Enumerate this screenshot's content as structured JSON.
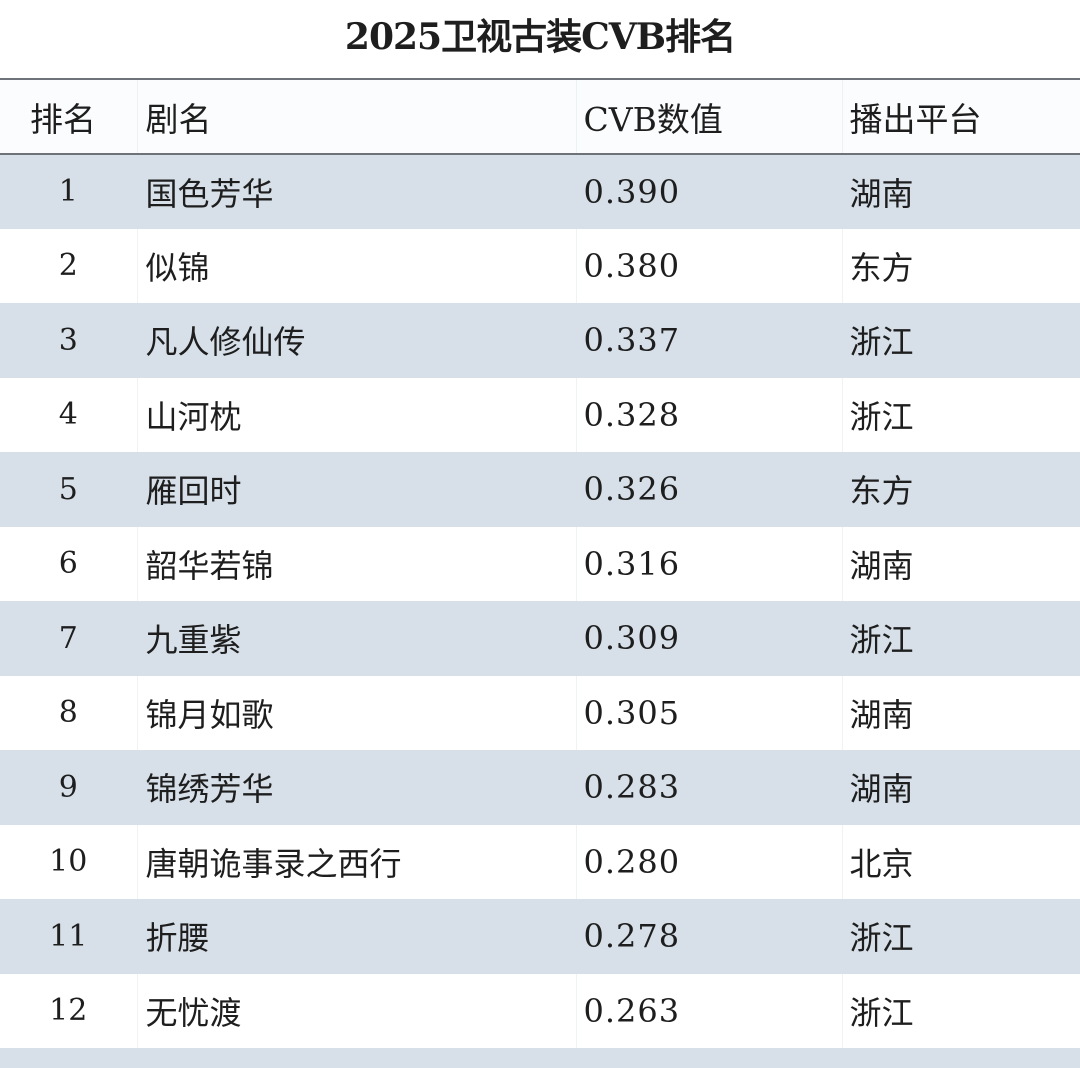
{
  "title": "2025卫视古装CVB排名",
  "table": {
    "headers": {
      "rank": "排名",
      "name": "剧名",
      "cvb": "CVB数值",
      "platform": "播出平台"
    },
    "rows": [
      {
        "rank": "1",
        "name": "国色芳华",
        "cvb": "0.390",
        "platform": "湖南"
      },
      {
        "rank": "2",
        "name": "似锦",
        "cvb": "0.380",
        "platform": "东方"
      },
      {
        "rank": "3",
        "name": "凡人修仙传",
        "cvb": "0.337",
        "platform": "浙江"
      },
      {
        "rank": "4",
        "name": "山河枕",
        "cvb": "0.328",
        "platform": "浙江"
      },
      {
        "rank": "5",
        "name": "雁回时",
        "cvb": "0.326",
        "platform": "东方"
      },
      {
        "rank": "6",
        "name": "韶华若锦",
        "cvb": "0.316",
        "platform": "湖南"
      },
      {
        "rank": "7",
        "name": "九重紫",
        "cvb": "0.309",
        "platform": "浙江"
      },
      {
        "rank": "8",
        "name": "锦月如歌",
        "cvb": "0.305",
        "platform": "湖南"
      },
      {
        "rank": "9",
        "name": "锦绣芳华",
        "cvb": "0.283",
        "platform": "湖南"
      },
      {
        "rank": "10",
        "name": "唐朝诡事录之西行",
        "cvb": "0.280",
        "platform": "北京"
      },
      {
        "rank": "11",
        "name": "折腰",
        "cvb": "0.278",
        "platform": "浙江"
      },
      {
        "rank": "12",
        "name": "无忧渡",
        "cvb": "0.263",
        "platform": "浙江"
      }
    ]
  },
  "colors": {
    "shaded_row": "#d7e0e9",
    "plain_row": "#ffffff",
    "header_rule": "#6e737a",
    "text": "#1e1e1e"
  }
}
